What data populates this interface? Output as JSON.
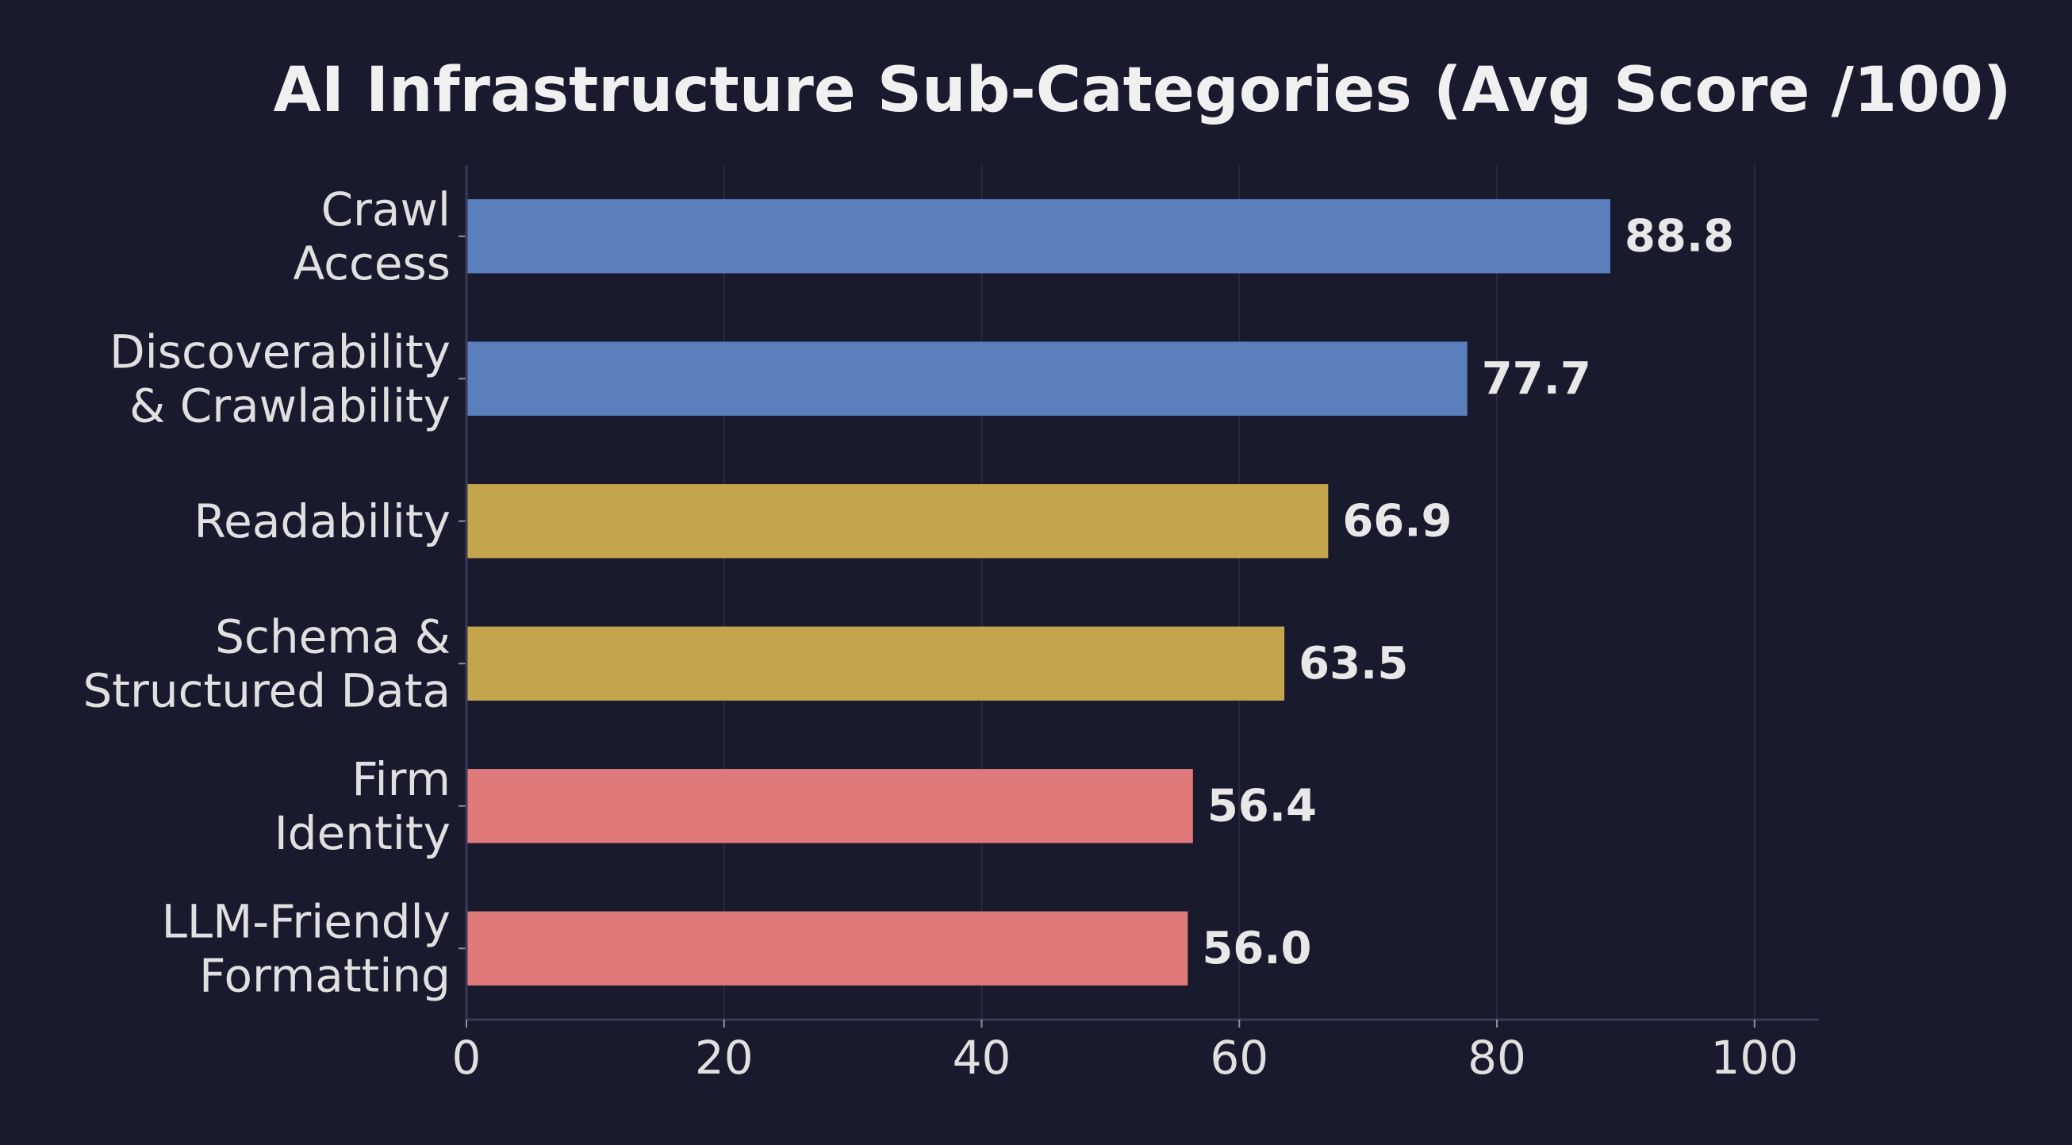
{
  "chart_data": {
    "type": "bar",
    "orientation": "horizontal",
    "title": "AI Infrastructure Sub-Categories (Avg Score /100)",
    "xlabel": "",
    "ylabel": "",
    "xlim": [
      0,
      105
    ],
    "x_ticks": [
      0,
      20,
      40,
      60,
      80,
      100
    ],
    "grid": true,
    "legend": "none",
    "categories": [
      [
        "Crawl",
        "Access"
      ],
      [
        "Discoverability",
        "& Crawlability"
      ],
      [
        "Readability"
      ],
      [
        "Schema &",
        "Structured Data"
      ],
      [
        "Firm",
        "Identity"
      ],
      [
        "LLM-Friendly",
        "Formatting"
      ]
    ],
    "values": [
      88.8,
      77.7,
      66.9,
      63.5,
      56.4,
      56.0
    ],
    "value_labels": [
      "88.8",
      "77.7",
      "66.9",
      "63.5",
      "56.4",
      "56.0"
    ],
    "bar_colors": [
      "#5b7fbd",
      "#5b7fbd",
      "#c4a44c",
      "#c4a44c",
      "#e07a7a",
      "#e07a7a"
    ],
    "colors": {
      "background": "#1a1a2e",
      "grid": "#3a3a4a",
      "axis": "#3a3a58",
      "text": "#e0e0e0"
    }
  }
}
